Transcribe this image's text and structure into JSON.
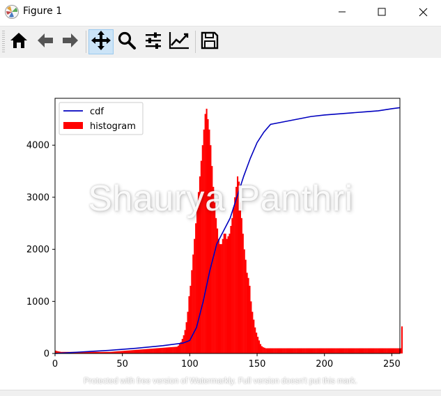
{
  "window": {
    "title": "Figure 1",
    "icons": {
      "app": "matplotlib-icon",
      "minimize": "minimize-icon",
      "maximize": "maximize-icon",
      "close": "close-icon"
    }
  },
  "toolbar": {
    "buttons": [
      {
        "name": "home-button",
        "icon": "home-icon",
        "active": false
      },
      {
        "name": "back-button",
        "icon": "arrow-left-icon",
        "active": false
      },
      {
        "name": "forward-button",
        "icon": "arrow-right-icon",
        "active": false
      },
      {
        "name": "pan-button",
        "icon": "move-icon",
        "active": true
      },
      {
        "name": "zoom-button",
        "icon": "magnifier-icon",
        "active": false
      },
      {
        "name": "subplots-button",
        "icon": "sliders-icon",
        "active": false
      },
      {
        "name": "edit-axes-button",
        "icon": "line-chart-icon",
        "active": false
      },
      {
        "name": "save-button",
        "icon": "floppy-disk-icon",
        "active": false
      }
    ]
  },
  "watermark": {
    "text": "Shaurya Panthri",
    "footer": "Protected with free version of Watermarkly. Full version doesn't put this mark."
  },
  "chart_data": {
    "type": "bar",
    "xlim": [
      0,
      256
    ],
    "ylim": [
      0,
      4900
    ],
    "xticks": [
      0,
      50,
      100,
      150,
      200,
      250
    ],
    "yticks": [
      0,
      1000,
      2000,
      3000,
      4000
    ],
    "legend": {
      "placement": "top-left",
      "entries": [
        "cdf",
        "histogram"
      ]
    },
    "grid": false,
    "colors": {
      "histogram": "#ff0000",
      "cdf": "#0000bf"
    },
    "series": [
      {
        "name": "histogram",
        "kind": "bar",
        "x_start": 0,
        "bin_width": 1,
        "values": [
          55,
          45,
          40,
          35,
          30,
          30,
          30,
          30,
          30,
          30,
          30,
          30,
          30,
          30,
          30,
          30,
          30,
          30,
          30,
          30,
          30,
          30,
          30,
          30,
          30,
          30,
          30,
          30,
          30,
          30,
          30,
          30,
          30,
          30,
          30,
          30,
          30,
          30,
          30,
          30,
          30,
          32,
          34,
          36,
          38,
          40,
          42,
          44,
          46,
          48,
          50,
          52,
          54,
          56,
          58,
          60,
          62,
          64,
          66,
          68,
          70,
          72,
          74,
          76,
          78,
          80,
          82,
          84,
          86,
          88,
          90,
          92,
          94,
          96,
          98,
          100,
          102,
          104,
          106,
          108,
          110,
          112,
          114,
          116,
          118,
          120,
          122,
          124,
          126,
          128,
          130,
          150,
          180,
          220,
          280,
          350,
          450,
          600,
          800,
          1100,
          1300,
          1600,
          1900,
          2200,
          2500,
          2800,
          3100,
          3400,
          3700,
          4000,
          4300,
          4600,
          4700,
          4500,
          4300,
          4000,
          3600,
          3200,
          2900,
          2600,
          2400,
          2200,
          2100,
          2100,
          2200,
          2300,
          2300,
          2200,
          2250,
          2300,
          2450,
          2600,
          2800,
          3000,
          3200,
          3400,
          3300,
          2900,
          2600,
          2300,
          2000,
          1800,
          1550,
          1450,
          1300,
          1000,
          800,
          650,
          500,
          400,
          320,
          250,
          180,
          140,
          120,
          110,
          100,
          100,
          100,
          100,
          100,
          100,
          100,
          100,
          100,
          100,
          100,
          100,
          100,
          100,
          100,
          100,
          100,
          100,
          100,
          100,
          100,
          100,
          100,
          100,
          100,
          100,
          100,
          100,
          100,
          100,
          100,
          100,
          100,
          100,
          100,
          100,
          100,
          100,
          100,
          100,
          100,
          100,
          100,
          100,
          100,
          100,
          100,
          100,
          100,
          100,
          100,
          100,
          100,
          100,
          100,
          100,
          100,
          100,
          100,
          100,
          100,
          100,
          100,
          100,
          100,
          100,
          100,
          100,
          100,
          100,
          100,
          100,
          100,
          100,
          100,
          100,
          100,
          100,
          100,
          100,
          100,
          100,
          100,
          100,
          100,
          100,
          100,
          100,
          100,
          100,
          100,
          100,
          100,
          100,
          100,
          100,
          100,
          100,
          100,
          100,
          100,
          520
        ]
      },
      {
        "name": "cdf",
        "kind": "line",
        "x": [
          0,
          20,
          40,
          60,
          80,
          95,
          100,
          105,
          110,
          115,
          120,
          125,
          130,
          135,
          140,
          145,
          150,
          155,
          160,
          170,
          180,
          190,
          200,
          210,
          220,
          230,
          240,
          250,
          256
        ],
        "y": [
          0,
          30,
          60,
          100,
          150,
          200,
          250,
          500,
          1000,
          1600,
          2100,
          2350,
          2600,
          3000,
          3400,
          3750,
          4050,
          4250,
          4400,
          4450,
          4500,
          4550,
          4580,
          4600,
          4620,
          4640,
          4660,
          4700,
          4720
        ]
      }
    ]
  }
}
